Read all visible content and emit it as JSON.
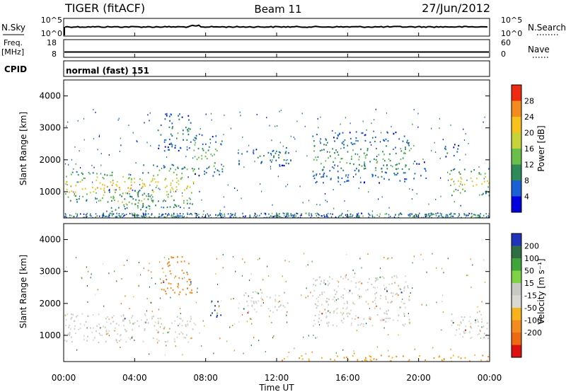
{
  "header": {
    "radar": "TIGER (fitACF)",
    "beam": "Beam 11",
    "date": "27/Jun/2012"
  },
  "nsky_panel": {
    "label": "N.Sky",
    "left_ticks": [
      "10^5",
      "10^0"
    ],
    "right_label": "N.Search",
    "right_ticks": [
      "10^5",
      "10^0"
    ],
    "nsky_level_log10": 0.35,
    "nsearch_level_log10": 0.0
  },
  "freq_panel": {
    "label_line1": "Freq.",
    "label_line2": "[MHz]",
    "left_ticks": [
      "18",
      "8"
    ],
    "right_label": "Nave",
    "right_ticks": [
      "60",
      "0"
    ],
    "freq_mhz": 9.7,
    "nave": 20
  },
  "cpid_panel": {
    "label": "CPID",
    "text": "normal (fast) 151"
  },
  "colors": {
    "power_scale": [
      "#0000dd",
      "#1a5fd6",
      "#2e8b57",
      "#6abf4b",
      "#c8d23a",
      "#f7c21e",
      "#f58a1e",
      "#ee2a12"
    ],
    "velocity_scale": [
      "#2233bb",
      "#2e6e45",
      "#3fa53a",
      "#7fd146",
      "#c9c9c4",
      "#d9d9d2",
      "#f7b31e",
      "#f58a1e",
      "#ee6a12",
      "#dd1010"
    ]
  },
  "chart_data": [
    {
      "type": "heatmap",
      "name": "Power",
      "xlabel": "",
      "ylabel": "Slant Range [km]",
      "x_ticks": [
        "00:00",
        "04:00",
        "08:00",
        "12:00",
        "16:00",
        "20:00",
        "00:00"
      ],
      "xlim_hours": [
        0,
        24
      ],
      "y_ticks": [
        "1000",
        "2000",
        "3000",
        "4000"
      ],
      "ylim_km": [
        180,
        4500
      ],
      "colorbar_label": "Power [dB]",
      "colorbar_ticks": [
        "4",
        "8",
        "12",
        "16",
        "20",
        "24",
        "28"
      ],
      "colorbar_range": [
        0,
        32
      ],
      "regions": [
        {
          "t0": 0.0,
          "t1": 4.6,
          "r0": 700,
          "r1": 1650,
          "level": 22
        },
        {
          "t0": 2.5,
          "t1": 5.0,
          "r0": 300,
          "r1": 1100,
          "level": 14
        },
        {
          "t0": 4.4,
          "t1": 7.4,
          "r0": 500,
          "r1": 1900,
          "level": 20
        },
        {
          "t0": 5.2,
          "t1": 7.2,
          "r0": 2300,
          "r1": 3500,
          "level": 10
        },
        {
          "t0": 7.3,
          "t1": 9.0,
          "r0": 1500,
          "r1": 2800,
          "level": 14
        },
        {
          "t0": 9.8,
          "t1": 12.8,
          "r0": 1800,
          "r1": 2400,
          "level": 10
        },
        {
          "t0": 14.0,
          "t1": 19.5,
          "r0": 1300,
          "r1": 2900,
          "level": 12
        },
        {
          "t0": 19.7,
          "t1": 20.4,
          "r0": 1400,
          "r1": 2000,
          "level": 8
        },
        {
          "t0": 21.4,
          "t1": 22.3,
          "r0": 2000,
          "r1": 2500,
          "level": 8
        },
        {
          "t0": 21.7,
          "t1": 24.0,
          "r0": 900,
          "r1": 1750,
          "level": 20
        }
      ]
    },
    {
      "type": "heatmap",
      "name": "Velocity",
      "xlabel": "Time UT",
      "ylabel": "Slant Range [km]",
      "x_ticks": [
        "00:00",
        "04:00",
        "08:00",
        "12:00",
        "16:00",
        "20:00",
        "00:00"
      ],
      "xlim_hours": [
        0,
        24
      ],
      "y_ticks": [
        "1000",
        "2000",
        "3000",
        "4000"
      ],
      "ylim_km": [
        180,
        4500
      ],
      "colorbar_label": "Velocity [m s⁻¹]",
      "colorbar_ticks": [
        "200",
        "100",
        "50",
        "15",
        "-15",
        "-50",
        "-100",
        "-200"
      ],
      "regions": [
        {
          "t0": 0.0,
          "t1": 7.4,
          "r0": 800,
          "r1": 1700,
          "velocity": 0
        },
        {
          "t0": 5.4,
          "t1": 7.2,
          "r0": 2300,
          "r1": 3500,
          "velocity": -60
        },
        {
          "t0": 8.2,
          "t1": 9.0,
          "r0": 1600,
          "r1": 2100,
          "velocity": 180
        },
        {
          "t0": 9.8,
          "t1": 12.8,
          "r0": 1700,
          "r1": 2400,
          "velocity": 0
        },
        {
          "t0": 14.0,
          "t1": 19.5,
          "r0": 1300,
          "r1": 2900,
          "velocity": 0
        },
        {
          "t0": 21.7,
          "t1": 24.0,
          "r0": 900,
          "r1": 1750,
          "velocity": 0
        },
        {
          "t0": 12.0,
          "t1": 24.0,
          "r0": 200,
          "r1": 400,
          "velocity": -30
        }
      ]
    }
  ]
}
